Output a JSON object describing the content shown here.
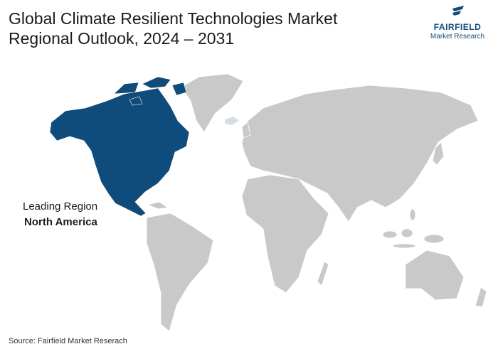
{
  "title": [
    "Global Climate Resilient Technologies Market",
    "Regional Outlook, 2024 – 2031"
  ],
  "logo": {
    "brand": "FAIRFIELD",
    "subtitle": "Market Research"
  },
  "leading_region": {
    "label": "Leading Region",
    "name": "North America"
  },
  "source": "Source: Fairfield Market Reserach"
}
